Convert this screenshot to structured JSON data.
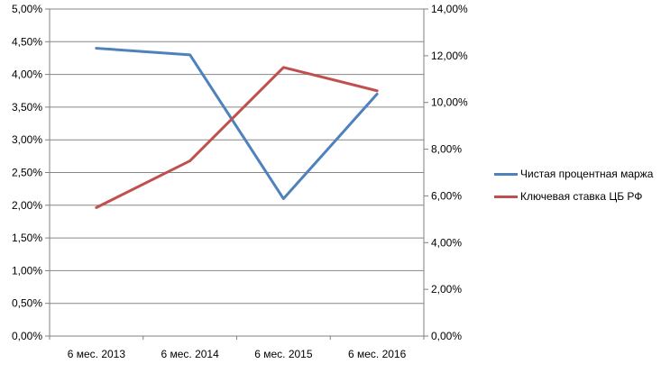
{
  "chart_data": {
    "type": "line",
    "title": "",
    "categories": [
      "6 мес. 2013",
      "6 мес. 2014",
      "6 мес. 2015",
      "6 мес. 2016"
    ],
    "series": [
      {
        "name": "Чистая процентная маржа",
        "axis": "left",
        "color": "#4F81BD",
        "values": [
          4.4,
          4.3,
          2.1,
          3.7
        ]
      },
      {
        "name": "Ключевая ставка ЦБ РФ",
        "axis": "right",
        "color": "#C0504D",
        "values": [
          5.5,
          7.5,
          11.5,
          10.5
        ]
      }
    ],
    "left_axis": {
      "min": 0,
      "max": 5,
      "step": 0.5,
      "tick_labels": [
        "0,00%",
        "0,50%",
        "1,00%",
        "1,50%",
        "2,00%",
        "2,50%",
        "3,00%",
        "3,50%",
        "4,00%",
        "4,50%",
        "5,00%"
      ]
    },
    "right_axis": {
      "min": 0,
      "max": 14,
      "step": 2,
      "tick_labels": [
        "0,00%",
        "2,00%",
        "4,00%",
        "6,00%",
        "8,00%",
        "10,00%",
        "12,00%",
        "14,00%"
      ]
    },
    "grid": true,
    "legend_position": "right",
    "colors": {
      "axis": "#808080",
      "grid": "#868686",
      "text": "#000000",
      "background": "#FFFFFF"
    }
  }
}
